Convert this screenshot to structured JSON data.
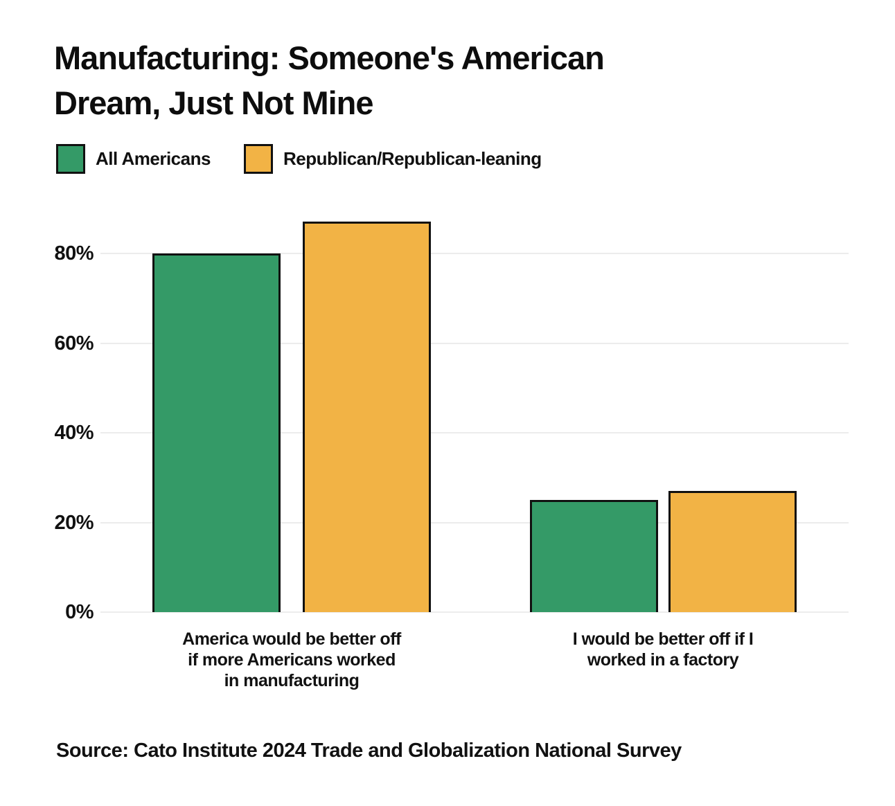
{
  "title": "Manufacturing: Someone's American\nDream, Just Not Mine",
  "source": "Source: Cato Institute 2024 Trade and Globalization National Survey",
  "colors": {
    "all_americans": "#349A67",
    "republican": "#F2B345",
    "gridline": "#ececec",
    "bar_border": "#111111"
  },
  "chart_data": {
    "type": "bar",
    "title": "Manufacturing: Someone's American Dream, Just Not Mine",
    "categories": [
      "America would be better off\nif more Americans worked\nin manufacturing",
      "I would be better off if I\nworked in a factory"
    ],
    "series": [
      {
        "name": "All Americans",
        "color": "#349A67",
        "values": [
          80,
          25
        ]
      },
      {
        "name": "Republican/Republican-leaning",
        "color": "#F2B345",
        "values": [
          87,
          27
        ]
      }
    ],
    "xlabel": "",
    "ylabel": "",
    "unit": "%",
    "yticks": [
      "0%",
      "20%",
      "40%",
      "60%",
      "80%"
    ],
    "ylim": [
      0,
      91.7
    ],
    "grid": "horizontal",
    "legend_position": "top-left"
  }
}
